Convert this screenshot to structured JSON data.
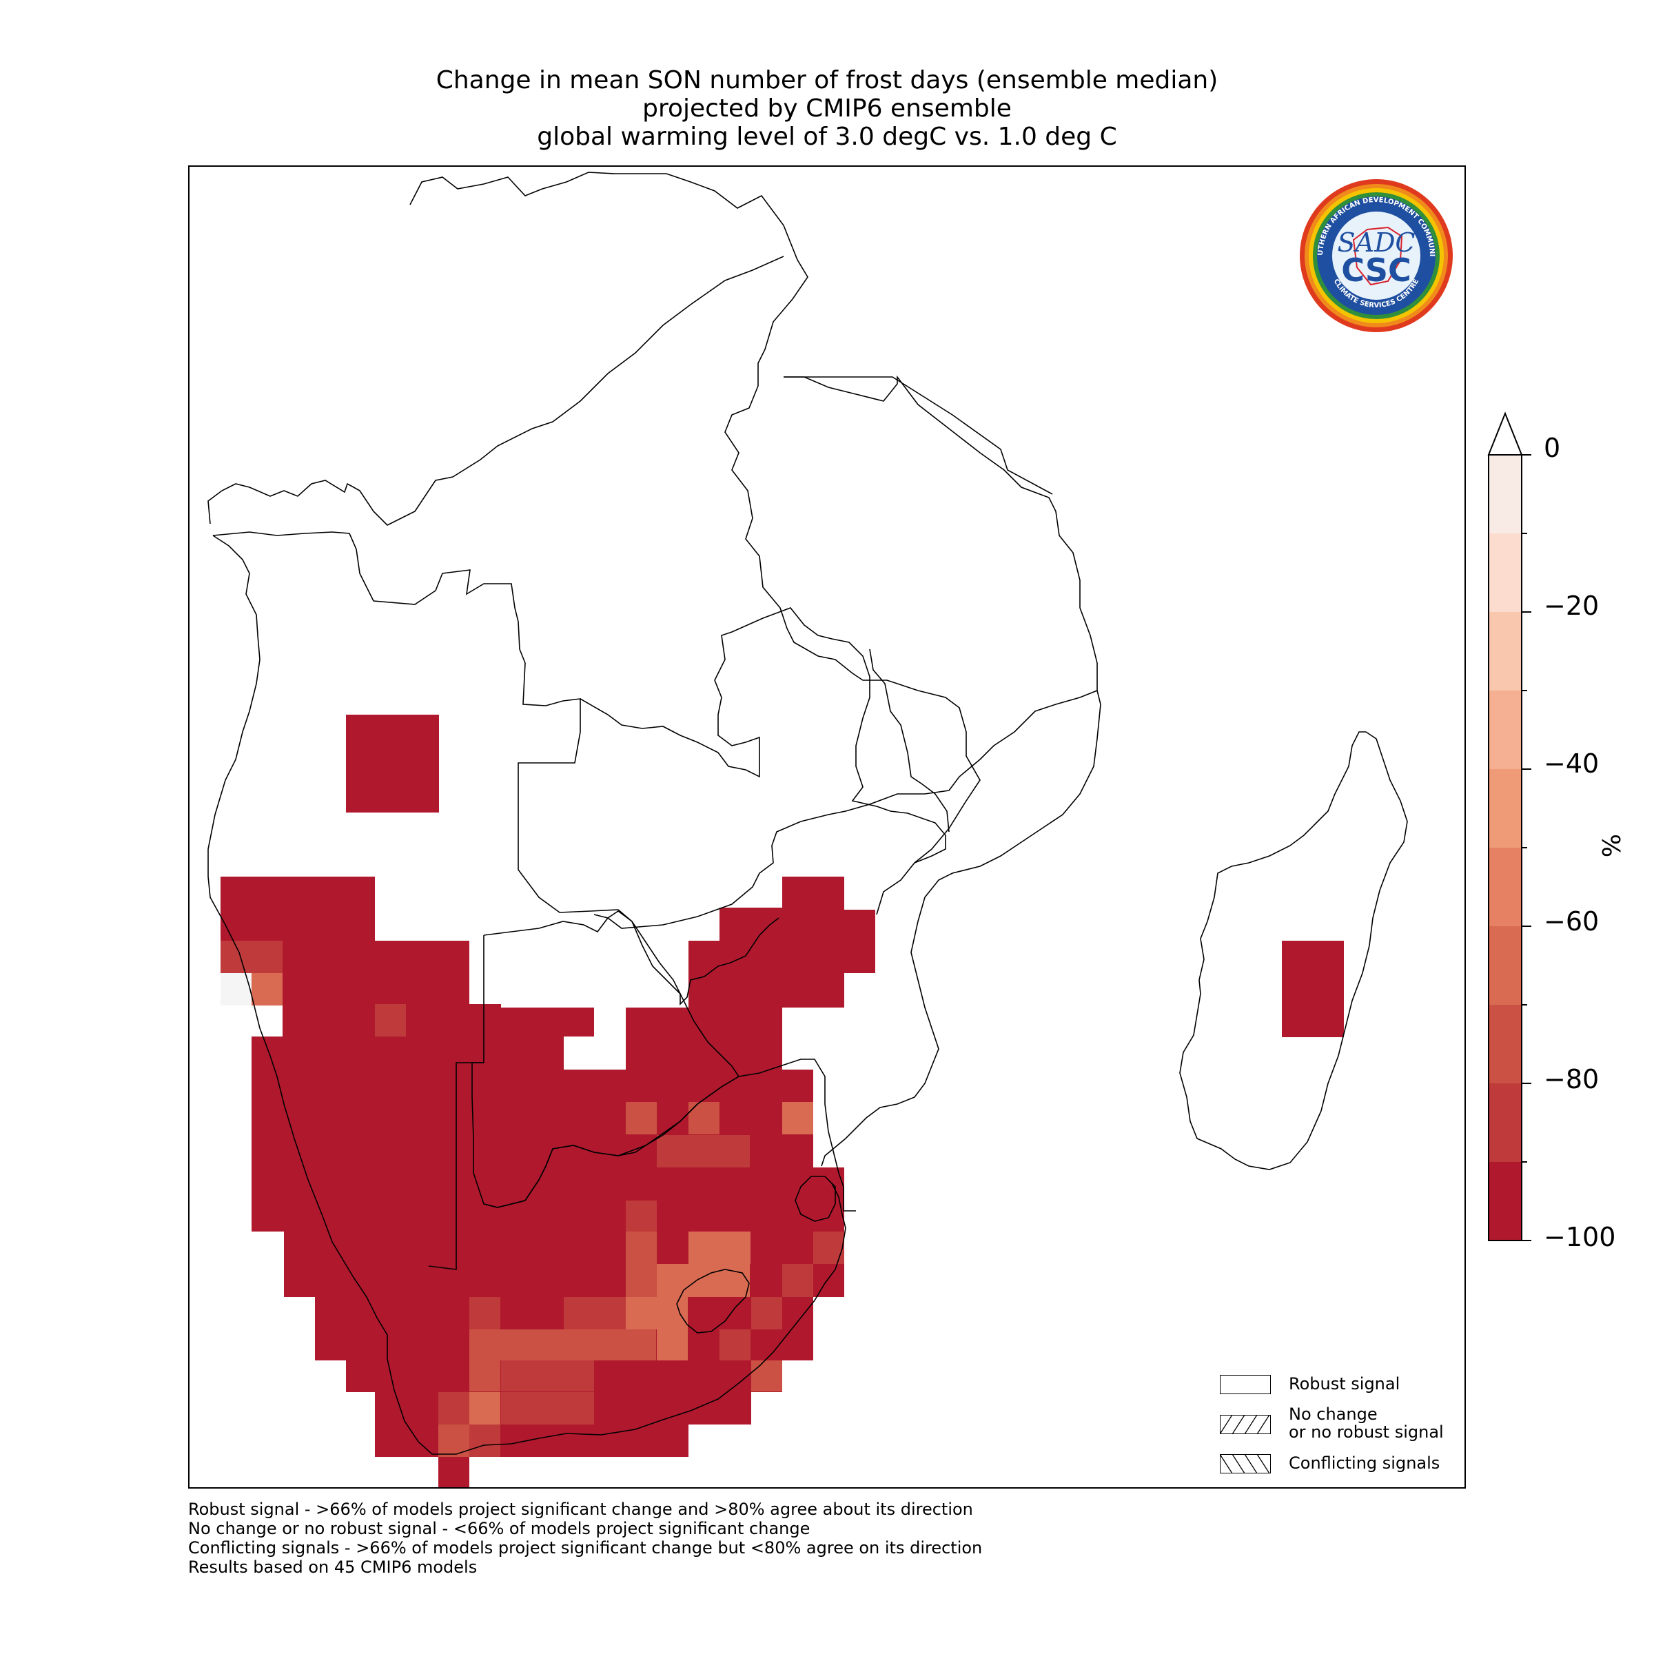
{
  "title": {
    "line1": "Change in mean SON number of frost days (ensemble median)",
    "line2": "projected by CMIP6 ensemble",
    "line3": "global warming level of 3.0 degC vs. 1.0 deg C"
  },
  "logo": {
    "top_text": "SOUTHERN AFRICAN DEVELOPMENT COMMUNITY",
    "bottom_text": "CLIMATE SERVICES CENTRE",
    "center_text": "SADC",
    "center_text2": "CSC",
    "colors": {
      "ring_outer": "#e03a1e",
      "ring_mid": "#f4c400",
      "ring_inner": "#2f8f3a",
      "field": "#1f4fa0"
    }
  },
  "colorbar": {
    "unit": "%",
    "ticks": [
      "0",
      "−20",
      "−40",
      "−60",
      "−80",
      "−100"
    ],
    "levels": [
      {
        "from": 0,
        "to": -10,
        "color": "#f8ebe6"
      },
      {
        "from": -10,
        "to": -20,
        "color": "#fbdcce"
      },
      {
        "from": -20,
        "to": -30,
        "color": "#f9c7ae"
      },
      {
        "from": -30,
        "to": -40,
        "color": "#f5b093"
      },
      {
        "from": -40,
        "to": -50,
        "color": "#f09b78"
      },
      {
        "from": -50,
        "to": -60,
        "color": "#e68263"
      },
      {
        "from": -60,
        "to": -70,
        "color": "#da6b53"
      },
      {
        "from": -70,
        "to": -80,
        "color": "#cb5144"
      },
      {
        "from": -80,
        "to": -90,
        "color": "#bf3a3a"
      },
      {
        "from": -90,
        "to": -100,
        "color": "#b0192d"
      }
    ],
    "extend": "top"
  },
  "legend": {
    "items": [
      {
        "label_line1": "Robust signal",
        "label_line2": "",
        "hatch": "none"
      },
      {
        "label_line1": "No change",
        "label_line2": "or no robust signal",
        "hatch": "forward"
      },
      {
        "label_line1": "Conflicting signals",
        "label_line2": "",
        "hatch": "backward"
      }
    ]
  },
  "footnotes": [
    "Robust signal - >66% of models project significant change and >80% agree about its direction",
    "No change or no robust signal - <66% of models project significant change",
    "Conflicting signals - >66% of models project significant change but <80% agree on its direction",
    "Results based on 45 CMIP6 models"
  ],
  "map_data": {
    "variable": "frost days change (%)",
    "season": "SON",
    "dominant_value_range": [
      -100,
      -90
    ],
    "moderate_cells_range": [
      -80,
      -60
    ],
    "pale_cell_value_range": [
      0,
      -10
    ]
  }
}
